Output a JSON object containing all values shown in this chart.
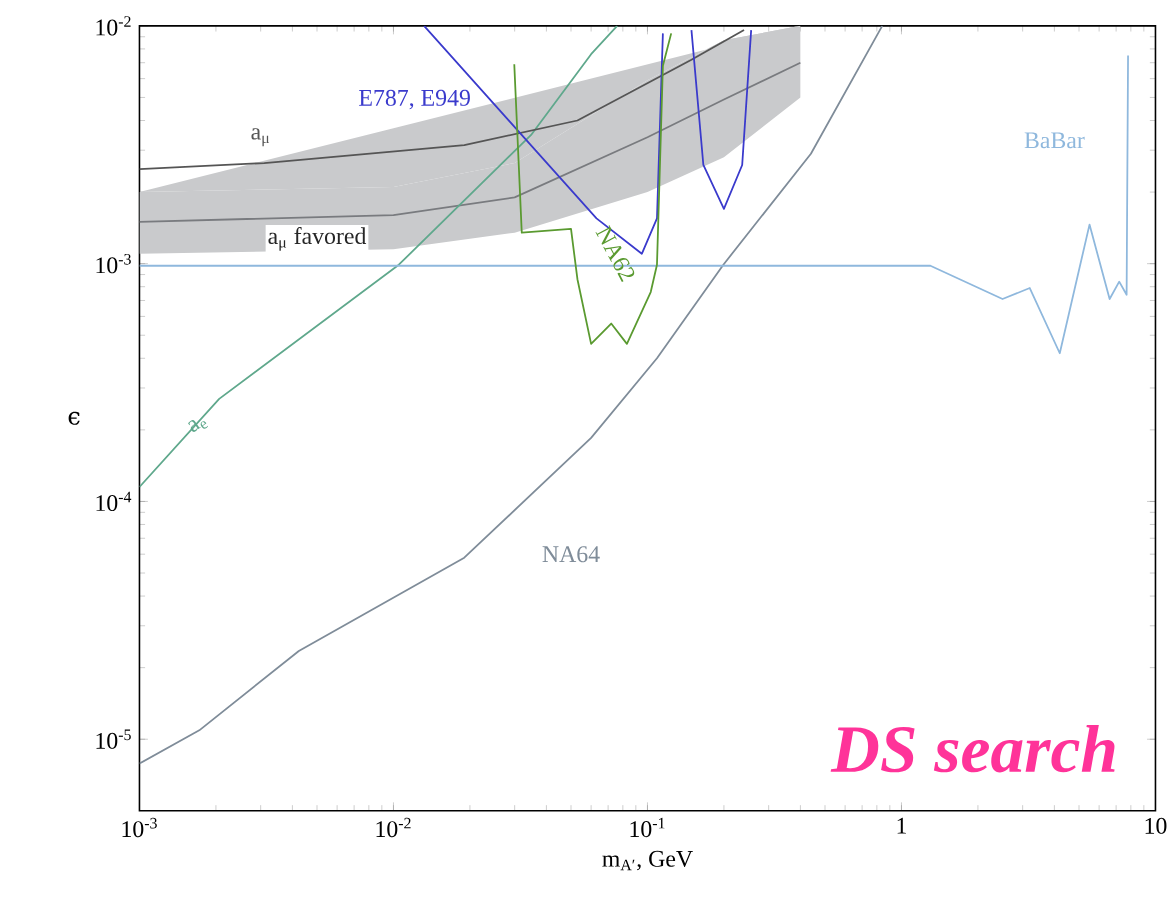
{
  "chart_data": {
    "type": "line",
    "xlabel": "m$_{A′}$, GeV",
    "ylabel": "ϵ",
    "log": "xy",
    "grid": false,
    "marker": "none",
    "line_style": "solid",
    "xlim": [
      0.001,
      10
    ],
    "ylim": [
      5e-06,
      0.01
    ],
    "xticks": [
      {
        "value": 0.001,
        "label": "10$^{-3}$"
      },
      {
        "value": 0.01,
        "label": "10$^{-2}$"
      },
      {
        "value": 0.1,
        "label": "10$^{-1}$"
      },
      1,
      10
    ],
    "yticks": [
      {
        "value": 1e-05,
        "label": "10$^{-5}$"
      },
      {
        "value": 0.0001,
        "label": "10$^{-4}$"
      },
      {
        "value": 0.001,
        "label": "10$^{-3}$"
      },
      {
        "value": 0.01,
        "label": "10$^{-2}$"
      }
    ],
    "annotations": [
      "DS search"
    ],
    "series": [
      {
        "name": "NA64",
        "color": "#7f8c99",
        "x": [
          0.001,
          0.00172,
          0.00424,
          0.019,
          0.06,
          0.109,
          0.199,
          0.44,
          0.84
        ],
        "values": [
          7.9e-06,
          1.09e-05,
          2.35e-05,
          5.8e-05,
          0.000185,
          0.0004,
          0.00099,
          0.0029,
          0.01
        ]
      },
      {
        "name": "a$_{μ}$ favored",
        "color": "#797b7f",
        "x": [
          0.001,
          0.01,
          0.03,
          0.1,
          0.2,
          0.4
        ],
        "values": [
          0.0015,
          0.0016,
          0.0019,
          0.0034,
          0.0049,
          0.007
        ],
        "lower": [
          0.0011,
          0.00115,
          0.00135,
          0.002,
          0.0028,
          0.005
        ],
        "upper": [
          0.002,
          0.0021,
          0.00265,
          0.0059,
          0.0087,
          0.01
        ]
      },
      {
        "name": "a$_{e}$",
        "color": "#5fa88c",
        "x": [
          0.001,
          0.00206,
          0.0105,
          0.035,
          0.06,
          0.076
        ],
        "values": [
          0.000115,
          0.00027,
          0.00099,
          0.0035,
          0.0076,
          0.01
        ]
      },
      {
        "name": "a$_{μ}$",
        "color": "#555555",
        "x": [
          0.001,
          0.0031,
          0.019,
          0.053,
          0.149,
          0.24
        ],
        "values": [
          0.0025,
          0.00265,
          0.00315,
          0.004,
          0.0072,
          0.0096
        ]
      },
      {
        "name": "BaBar",
        "color": "#8fb8dd",
        "x": [
          0.001,
          0.1,
          1.3,
          2.5,
          3.2,
          4.2,
          5.5,
          6.6,
          7.2,
          7.7,
          7.8
        ],
        "values": [
          0.00098,
          0.00098,
          0.00098,
          0.00071,
          0.00079,
          0.00042,
          0.00146,
          0.00071,
          0.00084,
          0.00074,
          0.0075
        ]
      },
      {
        "name": "E787, E949",
        "color": "#3a3acc",
        "x": [
          0.0132,
          0.063,
          0.095,
          0.109,
          0.115,
          0.13,
          0.149,
          0.166,
          0.2,
          0.236,
          0.256
        ],
        "values": [
          0.01,
          0.00155,
          0.0011,
          0.00155,
          0.0093,
          null,
          0.0096,
          0.0026,
          0.0017,
          0.0026,
          0.0096
        ]
      },
      {
        "name": "NA62",
        "color": "#5a9a30",
        "x": [
          0.0299,
          0.032,
          0.05,
          0.053,
          0.06,
          0.072,
          0.083,
          0.103,
          0.109,
          0.115,
          0.124
        ],
        "values": [
          0.0069,
          0.00135,
          0.0014,
          0.00086,
          0.00046,
          0.00056,
          0.00046,
          0.00076,
          0.00099,
          0.0068,
          0.0093
        ]
      }
    ]
  }
}
